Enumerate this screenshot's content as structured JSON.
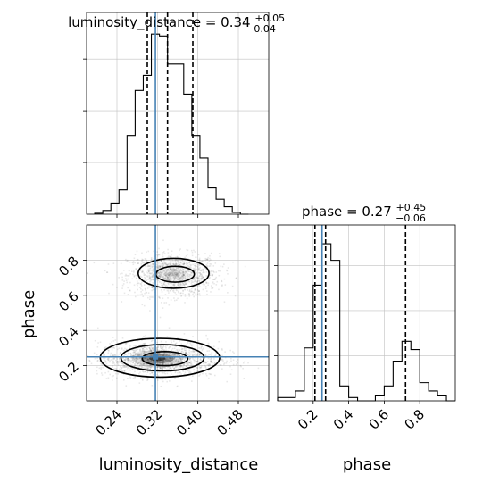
{
  "chart_data": [
    {
      "type": "histogram",
      "panel": "luminosity_distance-marginal",
      "title": "luminosity_distance = 0.34",
      "title_parts": {
        "base": "luminosity_distance = 0.34",
        "sup": "+0.05",
        "sub": "−0.04"
      },
      "xlim": [
        0.18,
        0.54
      ],
      "bin_edges": [
        0.196,
        0.212,
        0.228,
        0.244,
        0.26,
        0.276,
        0.292,
        0.308,
        0.324,
        0.34,
        0.356,
        0.372,
        0.388,
        0.404,
        0.42,
        0.436,
        0.452,
        0.468,
        0.484,
        0.5
      ],
      "counts": [
        0.5,
        2,
        6,
        13,
        42,
        66,
        74,
        96,
        95,
        80,
        80,
        64,
        42,
        30,
        14,
        8,
        4,
        1,
        0
      ],
      "quantiles": [
        0.3,
        0.34,
        0.39
      ],
      "truth": 0.316
    },
    {
      "type": "histogram",
      "panel": "phase-marginal",
      "title": "phase = 0.27",
      "title_parts": {
        "base": "phase = 0.27",
        "sup": "+0.45",
        "sub": "−0.06"
      },
      "xlim": [
        0.0,
        1.0
      ],
      "bin_edges": [
        0.0,
        0.05,
        0.1,
        0.15,
        0.2,
        0.25,
        0.3,
        0.35,
        0.4,
        0.45,
        0.5,
        0.55,
        0.6,
        0.65,
        0.7,
        0.75,
        0.8,
        0.85,
        0.9,
        0.95,
        1.0
      ],
      "counts": [
        2,
        2,
        6,
        32,
        70,
        95,
        85,
        9,
        2,
        0,
        0,
        3,
        9,
        24,
        36,
        31,
        11,
        6,
        3,
        0
      ],
      "quantiles": [
        0.21,
        0.27,
        0.72
      ],
      "truth": 0.25,
      "x_ticks": [
        "0.2",
        "0.4",
        "0.6",
        "0.8"
      ],
      "xlabel": "phase"
    },
    {
      "type": "scatter-density",
      "panel": "luminosity_distance-vs-phase",
      "xlim": [
        0.18,
        0.54
      ],
      "ylim": [
        0.0,
        1.0
      ],
      "x_ticks": [
        "0.24",
        "0.32",
        "0.40",
        "0.48"
      ],
      "y_ticks": [
        "0.2",
        "0.4",
        "0.6",
        "0.8"
      ],
      "xlabel": "luminosity_distance",
      "ylabel": "phase",
      "modes": [
        {
          "center": [
            0.35,
            0.72
          ],
          "sd": [
            0.045,
            0.06
          ],
          "density": [
            {
              "r": [
                0.014,
                0.012
              ],
              "level": 0.18
            },
            {
              "r": [
                0.03,
                0.03
              ],
              "level": 0.08
            },
            {
              "r": [
                0.05,
                0.06
              ],
              "level": 0.03
            }
          ]
        },
        {
          "center": [
            0.32,
            0.24
          ],
          "sd": [
            0.06,
            0.05
          ],
          "density": [
            {
              "r": [
                0.016,
                0.014
              ],
              "level": 0.85
            },
            {
              "r": [
                0.032,
                0.028
              ],
              "level": 0.55
            },
            {
              "r": [
                0.05,
                0.05
              ],
              "level": 0.2
            }
          ]
        }
      ],
      "contours": [
        {
          "center": [
            0.355,
            0.72
          ],
          "r": [
            0.038,
            0.045
          ]
        },
        {
          "center": [
            0.352,
            0.725
          ],
          "r": [
            0.07,
            0.085
          ]
        },
        {
          "center": [
            0.335,
            0.24
          ],
          "r": [
            0.045,
            0.04
          ]
        },
        {
          "center": [
            0.33,
            0.245
          ],
          "r": [
            0.082,
            0.075
          ]
        },
        {
          "center": [
            0.325,
            0.245
          ],
          "r": [
            0.118,
            0.11
          ]
        }
      ],
      "truth": [
        0.316,
        0.25
      ]
    }
  ],
  "colors": {
    "truth": "#4682b4",
    "hist": "#000000",
    "grid": "#c0c0c0",
    "density": "#000000",
    "points": "#000000"
  }
}
